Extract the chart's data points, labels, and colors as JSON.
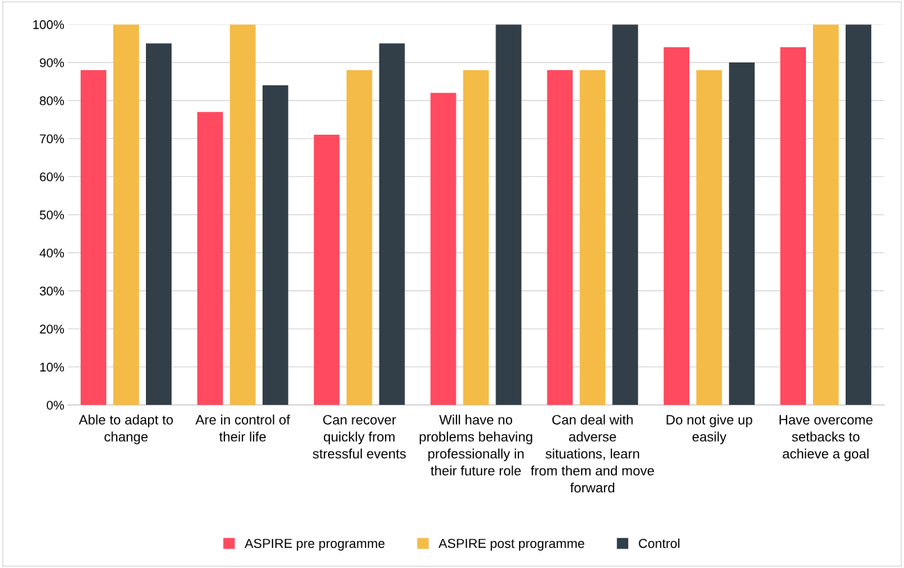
{
  "chart_data": {
    "type": "bar",
    "categories": [
      "Able to adapt to change",
      "Are in control of their life",
      "Can recover quickly from stressful events",
      "Will have no problems behaving professionally in their future role",
      "Can deal with adverse situations, learn from them and move forward",
      "Do not give up easily",
      "Have overcome setbacks to achieve a goal"
    ],
    "series": [
      {
        "name": "ASPIRE pre programme",
        "color": "#ff4a5f",
        "values": [
          88,
          77,
          71,
          82,
          88,
          94,
          94
        ]
      },
      {
        "name": "ASPIRE post programme",
        "color": "#f5bb47",
        "values": [
          100,
          100,
          88,
          88,
          88,
          88,
          100
        ]
      },
      {
        "name": "Control",
        "color": "#323e48",
        "values": [
          95,
          84,
          95,
          100,
          100,
          90,
          100
        ]
      }
    ],
    "ylim": [
      0,
      100
    ],
    "yticks": [
      {
        "value": 0,
        "label": "0%"
      },
      {
        "value": 10,
        "label": "10%"
      },
      {
        "value": 20,
        "label": "20%"
      },
      {
        "value": 30,
        "label": "30%"
      },
      {
        "value": 40,
        "label": "40%"
      },
      {
        "value": 50,
        "label": "50%"
      },
      {
        "value": 60,
        "label": "60%"
      },
      {
        "value": 70,
        "label": "70%"
      },
      {
        "value": 80,
        "label": "80%"
      },
      {
        "value": 90,
        "label": "90%"
      },
      {
        "value": 100,
        "label": "100%"
      }
    ],
    "grid": "y",
    "legend": "bottom"
  }
}
